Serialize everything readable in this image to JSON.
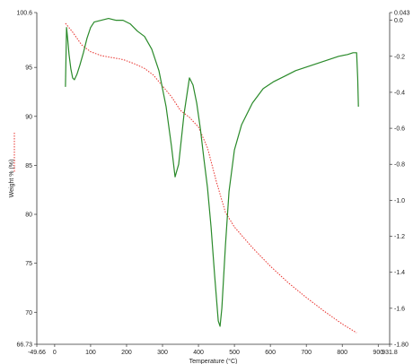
{
  "chart_data": {
    "type": "line",
    "title": "",
    "xlabel": "Temperature (°C)",
    "ylabel": "Weight % (%)",
    "y2label": "",
    "xlim": [
      -49.66,
      931.8
    ],
    "ylim": [
      66.73,
      100.6
    ],
    "y2lim": [
      -1.8,
      0.043
    ],
    "x_tick_labels": [
      "-49.66",
      "0",
      "100",
      "200",
      "300",
      "400",
      "500",
      "600",
      "700",
      "800",
      "900",
      "931.8"
    ],
    "y_tick_labels": [
      "66.73",
      "70",
      "75",
      "80",
      "85",
      "90",
      "95",
      "100.6"
    ],
    "y2_tick_labels": [
      "-1.80",
      "-1.6",
      "-1.4",
      "-1.2",
      "-1.0",
      "-0.8",
      "-0.6",
      "-0.4",
      "-0.2",
      "0.0",
      "0.043"
    ],
    "grid": false,
    "series": [
      {
        "name": "",
        "axis": "left",
        "color": "#e8302b",
        "style": "dotted",
        "x": [
          30,
          50,
          75,
          100,
          130,
          160,
          190,
          220,
          250,
          275,
          300,
          325,
          350,
          375,
          400,
          425,
          450,
          475,
          500,
          550,
          600,
          650,
          700,
          750,
          800,
          840
        ],
        "y": [
          99.5,
          98.6,
          97.3,
          96.6,
          96.2,
          96.0,
          95.8,
          95.4,
          94.9,
          94.2,
          93.1,
          92.0,
          90.6,
          89.9,
          88.9,
          86.8,
          83.3,
          80.2,
          78.7,
          76.6,
          74.7,
          73.0,
          71.5,
          70.1,
          68.8,
          67.9
        ]
      },
      {
        "name": "",
        "axis": "right",
        "color": "#2a8a2a",
        "style": "solid",
        "x": [
          30,
          33,
          36,
          40,
          45,
          50,
          55,
          62,
          70,
          80,
          90,
          100,
          110,
          130,
          150,
          170,
          190,
          210,
          230,
          250,
          270,
          290,
          310,
          325,
          335,
          345,
          360,
          375,
          385,
          395,
          405,
          415,
          425,
          435,
          445,
          455,
          460,
          465,
          475,
          485,
          500,
          520,
          550,
          580,
          610,
          640,
          670,
          700,
          730,
          760,
          790,
          815,
          830,
          840,
          843,
          845
        ],
        "y": [
          -0.37,
          -0.04,
          -0.1,
          -0.19,
          -0.27,
          -0.32,
          -0.33,
          -0.3,
          -0.25,
          -0.18,
          -0.1,
          -0.04,
          -0.01,
          0.0,
          0.01,
          0.0,
          0.0,
          -0.02,
          -0.06,
          -0.09,
          -0.16,
          -0.28,
          -0.48,
          -0.7,
          -0.87,
          -0.8,
          -0.52,
          -0.32,
          -0.36,
          -0.46,
          -0.6,
          -0.77,
          -0.93,
          -1.15,
          -1.42,
          -1.67,
          -1.7,
          -1.6,
          -1.25,
          -0.95,
          -0.72,
          -0.58,
          -0.46,
          -0.38,
          -0.34,
          -0.31,
          -0.28,
          -0.26,
          -0.24,
          -0.22,
          -0.2,
          -0.19,
          -0.18,
          -0.18,
          -0.32,
          -0.48
        ]
      }
    ]
  }
}
